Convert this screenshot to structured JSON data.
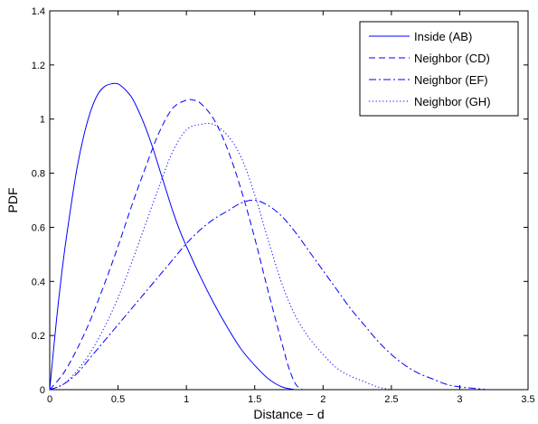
{
  "chart_data": {
    "type": "line",
    "title": "",
    "xlabel": "Distance − d",
    "ylabel": "PDF",
    "xlim": [
      0,
      3.5
    ],
    "ylim": [
      0,
      1.4
    ],
    "xticks": [
      0,
      0.5,
      1,
      1.5,
      2,
      2.5,
      3,
      3.5
    ],
    "xtick_labels": [
      "0",
      "0.5",
      "1",
      "1.5",
      "2",
      "2.5",
      "3",
      "3.5"
    ],
    "yticks": [
      0,
      0.2,
      0.4,
      0.6,
      0.8,
      1,
      1.2,
      1.4
    ],
    "ytick_labels": [
      "0",
      "0.2",
      "0.4",
      "0.6",
      "0.8",
      "1",
      "1.2",
      "1.4"
    ],
    "grid": false,
    "legend_position": "top-right",
    "color": "#0000ff",
    "series": [
      {
        "name": "Inside (AB)",
        "style": "solid",
        "x": [
          0,
          0.05,
          0.1,
          0.15,
          0.2,
          0.25,
          0.3,
          0.35,
          0.4,
          0.45,
          0.5,
          0.55,
          0.6,
          0.65,
          0.7,
          0.75,
          0.8,
          0.85,
          0.9,
          0.95,
          1.0,
          1.1,
          1.2,
          1.3,
          1.4,
          1.5,
          1.6,
          1.7,
          1.8
        ],
        "y": [
          0,
          0.26,
          0.48,
          0.66,
          0.82,
          0.94,
          1.03,
          1.09,
          1.12,
          1.13,
          1.13,
          1.11,
          1.08,
          1.03,
          0.97,
          0.9,
          0.82,
          0.74,
          0.66,
          0.59,
          0.53,
          0.42,
          0.32,
          0.23,
          0.15,
          0.09,
          0.04,
          0.01,
          0
        ]
      },
      {
        "name": "Neighbor (CD)",
        "style": "dashed",
        "x": [
          0,
          0.1,
          0.2,
          0.3,
          0.4,
          0.5,
          0.6,
          0.7,
          0.8,
          0.9,
          1.0,
          1.05,
          1.1,
          1.2,
          1.3,
          1.4,
          1.5,
          1.6,
          1.7,
          1.75,
          1.8,
          1.85
        ],
        "y": [
          0,
          0.06,
          0.15,
          0.26,
          0.39,
          0.53,
          0.68,
          0.82,
          0.95,
          1.04,
          1.07,
          1.07,
          1.06,
          1.0,
          0.89,
          0.74,
          0.56,
          0.36,
          0.17,
          0.08,
          0.02,
          0
        ]
      },
      {
        "name": "Neighbor (EF)",
        "style": "dashdot",
        "x": [
          0,
          0.1,
          0.2,
          0.3,
          0.4,
          0.5,
          0.6,
          0.7,
          0.8,
          0.9,
          1.0,
          1.1,
          1.2,
          1.3,
          1.4,
          1.5,
          1.6,
          1.7,
          1.8,
          1.9,
          2.0,
          2.1,
          2.2,
          2.3,
          2.4,
          2.5,
          2.6,
          2.7,
          2.8,
          2.9,
          3.0,
          3.1,
          3.2
        ],
        "y": [
          0,
          0.02,
          0.06,
          0.12,
          0.18,
          0.24,
          0.3,
          0.36,
          0.42,
          0.48,
          0.54,
          0.59,
          0.63,
          0.66,
          0.69,
          0.7,
          0.68,
          0.64,
          0.58,
          0.51,
          0.44,
          0.37,
          0.3,
          0.24,
          0.18,
          0.13,
          0.09,
          0.06,
          0.04,
          0.02,
          0.01,
          0.005,
          0
        ]
      },
      {
        "name": "Neighbor (GH)",
        "style": "dotted",
        "x": [
          0,
          0.1,
          0.2,
          0.3,
          0.4,
          0.5,
          0.6,
          0.7,
          0.8,
          0.9,
          1.0,
          1.1,
          1.2,
          1.3,
          1.4,
          1.5,
          1.6,
          1.7,
          1.8,
          1.9,
          2.0,
          2.1,
          2.2,
          2.3,
          2.4,
          2.5
        ],
        "y": [
          0,
          0.02,
          0.07,
          0.14,
          0.23,
          0.34,
          0.47,
          0.61,
          0.75,
          0.88,
          0.96,
          0.98,
          0.98,
          0.94,
          0.86,
          0.72,
          0.55,
          0.39,
          0.27,
          0.19,
          0.13,
          0.08,
          0.05,
          0.03,
          0.01,
          0
        ]
      }
    ]
  }
}
